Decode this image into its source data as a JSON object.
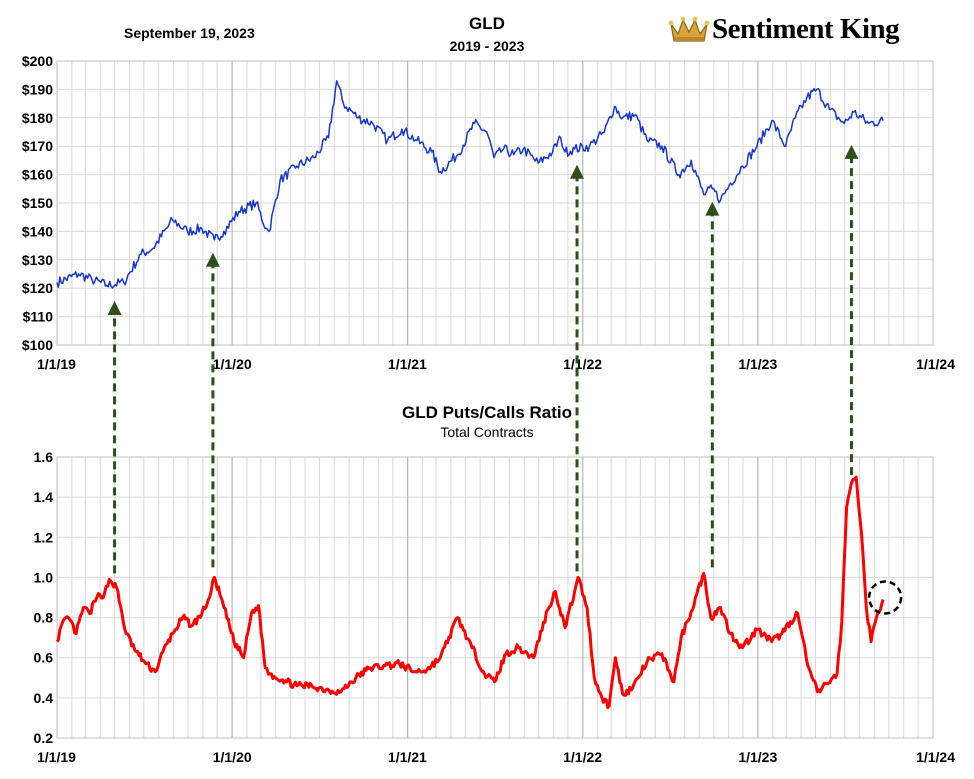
{
  "header": {
    "date": "September 19, 2023",
    "title": "GLD",
    "subtitle": "2019 - 2023",
    "logo_text": "Sentiment King"
  },
  "colors": {
    "price_line": "#1536c8",
    "ratio_line": "#ff0000",
    "arrow": "#2f4f1a",
    "grid": "#d9d9d9",
    "year_grid": "#a6a6a6"
  },
  "chart_data": [
    {
      "type": "line",
      "title": "GLD",
      "subtitle": "2019 - 2023",
      "ylim": [
        100,
        200
      ],
      "y_ticks": [
        "$200",
        "$190",
        "$180",
        "$170",
        "$160",
        "$150",
        "$140",
        "$130",
        "$120",
        "$110",
        "$100"
      ],
      "x_ticks": [
        "1/1/19",
        "1/1/20",
        "1/1/21",
        "1/1/22",
        "1/1/23",
        "1/1/24"
      ],
      "x_range": [
        "2019-01-01",
        "2024-01-01"
      ],
      "grid": true,
      "series": [
        {
          "x": [
            "2019-01-01",
            "2019-02-15",
            "2019-03-15",
            "2019-04-15",
            "2019-05-20",
            "2019-06-25",
            "2019-07-20",
            "2019-08-30",
            "2019-09-30",
            "2019-10-30",
            "2019-11-25",
            "2019-12-15",
            "2020-01-15",
            "2020-02-20",
            "2020-03-12",
            "2020-03-18",
            "2020-04-10",
            "2020-05-15",
            "2020-06-20",
            "2020-07-20",
            "2020-08-06",
            "2020-08-20",
            "2020-09-20",
            "2020-10-20",
            "2020-11-20",
            "2020-12-20",
            "2021-01-20",
            "2021-02-20",
            "2021-03-10",
            "2021-04-15",
            "2021-05-20",
            "2021-06-15",
            "2021-06-30",
            "2021-07-20",
            "2021-08-10",
            "2021-08-30",
            "2021-09-30",
            "2021-10-30",
            "2021-11-16",
            "2021-11-25",
            "2021-12-15",
            "2022-01-15",
            "2022-02-15",
            "2022-03-08",
            "2022-03-25",
            "2022-04-20",
            "2022-05-15",
            "2022-06-15",
            "2022-07-20",
            "2022-08-15",
            "2022-09-10",
            "2022-09-28",
            "2022-10-15",
            "2022-11-05",
            "2022-11-30",
            "2022-12-30",
            "2023-01-30",
            "2023-02-28",
            "2023-03-20",
            "2023-04-13",
            "2023-05-04",
            "2023-05-30",
            "2023-06-30",
            "2023-07-20",
            "2023-08-20",
            "2023-09-19"
          ],
          "values": [
            122,
            125,
            123,
            121,
            122,
            132,
            134,
            144,
            140,
            141,
            137,
            140,
            147,
            150,
            141,
            140,
            158,
            163,
            166,
            173,
            193,
            185,
            180,
            178,
            172,
            176,
            172,
            168,
            161,
            167,
            178,
            175,
            166,
            169,
            167,
            169,
            164,
            168,
            173,
            168,
            169,
            170,
            175,
            184,
            180,
            181,
            172,
            170,
            160,
            165,
            153,
            155,
            151,
            157,
            163,
            170,
            179,
            170,
            180,
            187,
            190,
            183,
            178,
            182,
            178,
            179
          ],
          "note": "Approximate weekly closing prices read from the chart"
        }
      ]
    },
    {
      "type": "line",
      "title": "GLD Puts/Calls Ratio",
      "subtitle": "Total Contracts",
      "ylim": [
        0.2,
        1.6
      ],
      "y_ticks": [
        "1.6",
        "1.4",
        "1.2",
        "1.0",
        "0.8",
        "0.6",
        "0.4",
        "0.2"
      ],
      "x_ticks": [
        "1/1/19",
        "1/1/20",
        "1/1/21",
        "1/1/22",
        "1/1/23",
        "1/1/24"
      ],
      "x_range": [
        "2019-01-01",
        "2024-01-01"
      ],
      "grid": true,
      "series": [
        {
          "x": [
            "2019-01-01",
            "2019-01-10",
            "2019-01-25",
            "2019-02-10",
            "2019-02-25",
            "2019-03-10",
            "2019-03-25",
            "2019-04-10",
            "2019-04-20",
            "2019-05-05",
            "2019-05-25",
            "2019-06-15",
            "2019-07-05",
            "2019-07-25",
            "2019-08-10",
            "2019-08-30",
            "2019-09-20",
            "2019-10-10",
            "2019-10-30",
            "2019-11-15",
            "2019-11-25",
            "2019-12-15",
            "2020-01-05",
            "2020-01-25",
            "2020-02-10",
            "2020-02-25",
            "2020-03-10",
            "2020-03-20",
            "2020-04-15",
            "2020-05-15",
            "2020-06-15",
            "2020-07-15",
            "2020-08-15",
            "2020-09-15",
            "2020-10-15",
            "2020-11-15",
            "2020-12-15",
            "2021-01-15",
            "2021-02-10",
            "2021-03-10",
            "2021-04-15",
            "2021-05-15",
            "2021-06-10",
            "2021-07-01",
            "2021-07-25",
            "2021-08-20",
            "2021-09-20",
            "2021-10-20",
            "2021-11-05",
            "2021-11-25",
            "2021-12-15",
            "2021-12-22",
            "2022-01-10",
            "2022-01-25",
            "2022-02-10",
            "2022-02-25",
            "2022-03-10",
            "2022-03-25",
            "2022-04-15",
            "2022-05-15",
            "2022-06-15",
            "2022-07-10",
            "2022-07-25",
            "2022-08-15",
            "2022-09-10",
            "2022-09-25",
            "2022-10-15",
            "2022-11-05",
            "2022-11-30",
            "2022-12-30",
            "2023-01-30",
            "2023-02-20",
            "2023-03-10",
            "2023-03-25",
            "2023-04-15",
            "2023-05-05",
            "2023-05-25",
            "2023-06-15",
            "2023-06-25",
            "2023-07-05",
            "2023-07-15",
            "2023-07-25",
            "2023-08-05",
            "2023-08-15",
            "2023-08-25",
            "2023-09-05",
            "2023-09-19"
          ],
          "values": [
            0.68,
            0.76,
            0.8,
            0.72,
            0.85,
            0.82,
            0.9,
            0.92,
            0.99,
            0.95,
            0.72,
            0.63,
            0.57,
            0.53,
            0.63,
            0.72,
            0.8,
            0.76,
            0.82,
            0.9,
            1.0,
            0.85,
            0.68,
            0.6,
            0.82,
            0.86,
            0.55,
            0.52,
            0.49,
            0.46,
            0.46,
            0.44,
            0.43,
            0.5,
            0.55,
            0.56,
            0.57,
            0.53,
            0.54,
            0.6,
            0.8,
            0.65,
            0.52,
            0.48,
            0.62,
            0.65,
            0.6,
            0.84,
            0.93,
            0.75,
            0.93,
            1.0,
            0.85,
            0.5,
            0.4,
            0.36,
            0.6,
            0.42,
            0.45,
            0.58,
            0.62,
            0.48,
            0.7,
            0.83,
            1.02,
            0.8,
            0.85,
            0.72,
            0.65,
            0.74,
            0.68,
            0.72,
            0.78,
            0.82,
            0.56,
            0.43,
            0.47,
            0.52,
            0.78,
            1.35,
            1.47,
            1.5,
            1.22,
            0.85,
            0.68,
            0.8,
            0.89
          ],
          "note": "Approximate smoothed put/call ratio read from the chart"
        }
      ]
    }
  ],
  "annotations": {
    "arrows": [
      {
        "date": "2019-05-01",
        "price": 119,
        "ratio": 0.99
      },
      {
        "date": "2019-11-22",
        "price": 136,
        "ratio": 1.02
      },
      {
        "date": "2021-12-20",
        "price": 167,
        "ratio": 1.0
      },
      {
        "date": "2022-09-28",
        "price": 154,
        "ratio": 1.02
      },
      {
        "date": "2023-07-15",
        "price": 174,
        "ratio": 1.48
      }
    ],
    "circle": {
      "date": "2023-09-19",
      "ratio": 0.9
    }
  }
}
